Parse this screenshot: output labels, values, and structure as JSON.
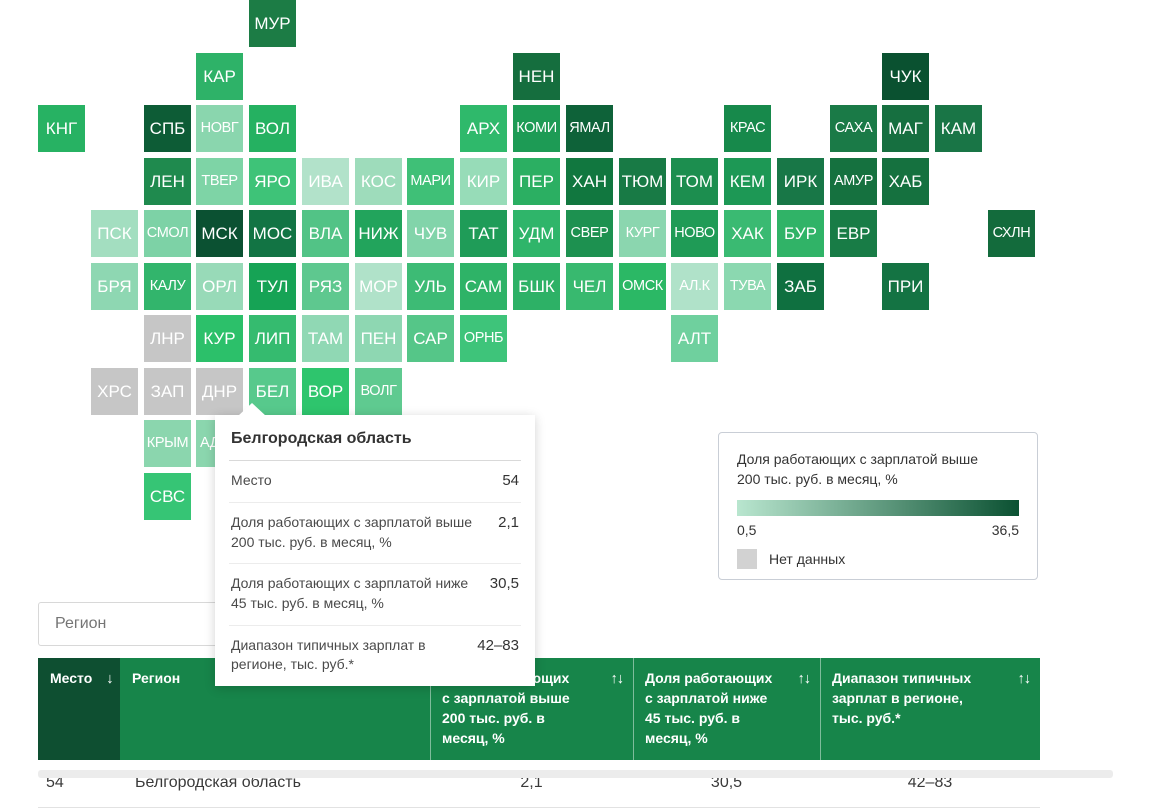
{
  "map": {
    "tiles": [
      {
        "label": "МУР",
        "row": 0,
        "col": 4,
        "color": "#1c7c45"
      },
      {
        "label": "КАР",
        "row": 1,
        "col": 3,
        "color": "#2eb268"
      },
      {
        "label": "НЕН",
        "row": 1,
        "col": 9,
        "color": "#156e3e"
      },
      {
        "label": "ЧУК",
        "row": 1,
        "col": 16,
        "color": "#0a5130"
      },
      {
        "label": "КНГ",
        "row": 2,
        "col": 0,
        "color": "#27b263"
      },
      {
        "label": "СПБ",
        "row": 2,
        "col": 2,
        "color": "#0d5c36"
      },
      {
        "label": "НОВГ",
        "row": 2,
        "col": 3,
        "color": "#8ad6ae"
      },
      {
        "label": "ВОЛ",
        "row": 2,
        "col": 4,
        "color": "#25b161"
      },
      {
        "label": "АРХ",
        "row": 2,
        "col": 8,
        "color": "#2fb96b"
      },
      {
        "label": "КОМИ",
        "row": 2,
        "col": 9,
        "color": "#1d9b55"
      },
      {
        "label": "ЯМАЛ",
        "row": 2,
        "col": 10,
        "color": "#0e6239"
      },
      {
        "label": "КРАС",
        "row": 2,
        "col": 13,
        "color": "#17894b"
      },
      {
        "label": "САХА",
        "row": 2,
        "col": 15,
        "color": "#1a7a47"
      },
      {
        "label": "МАГ",
        "row": 2,
        "col": 16,
        "color": "#166f40"
      },
      {
        "label": "КАМ",
        "row": 2,
        "col": 17,
        "color": "#197546"
      },
      {
        "label": "ЛЕН",
        "row": 3,
        "col": 2,
        "color": "#1f8a4e"
      },
      {
        "label": "ТВЕР",
        "row": 3,
        "col": 3,
        "color": "#7ed4a6"
      },
      {
        "label": "ЯРО",
        "row": 3,
        "col": 4,
        "color": "#3ec378"
      },
      {
        "label": "ИВА",
        "row": 3,
        "col": 5,
        "color": "#b2e2ca"
      },
      {
        "label": "КОС",
        "row": 3,
        "col": 6,
        "color": "#9edcbb"
      },
      {
        "label": "МАРИ",
        "row": 3,
        "col": 7,
        "color": "#3fc077"
      },
      {
        "label": "КИР",
        "row": 3,
        "col": 8,
        "color": "#97dcb8"
      },
      {
        "label": "ПЕР",
        "row": 3,
        "col": 9,
        "color": "#2baf62"
      },
      {
        "label": "ХАН",
        "row": 3,
        "col": 10,
        "color": "#11773f"
      },
      {
        "label": "ТЮМ",
        "row": 3,
        "col": 11,
        "color": "#187a45"
      },
      {
        "label": "ТОМ",
        "row": 3,
        "col": 12,
        "color": "#1c8e4f"
      },
      {
        "label": "КЕМ",
        "row": 3,
        "col": 13,
        "color": "#1d9855"
      },
      {
        "label": "ИРК",
        "row": 3,
        "col": 14,
        "color": "#187747"
      },
      {
        "label": "АМУР",
        "row": 3,
        "col": 15,
        "color": "#15713f"
      },
      {
        "label": "ХАБ",
        "row": 3,
        "col": 16,
        "color": "#15713f"
      },
      {
        "label": "ПСК",
        "row": 4,
        "col": 1,
        "color": "#a3dec0"
      },
      {
        "label": "СМОЛ",
        "row": 4,
        "col": 2,
        "color": "#7dd2a6"
      },
      {
        "label": "МСК",
        "row": 4,
        "col": 3,
        "color": "#0b5132"
      },
      {
        "label": "МОС",
        "row": 4,
        "col": 4,
        "color": "#127444"
      },
      {
        "label": "ВЛА",
        "row": 4,
        "col": 5,
        "color": "#52c386"
      },
      {
        "label": "НИЖ",
        "row": 4,
        "col": 6,
        "color": "#22a45c"
      },
      {
        "label": "ЧУВ",
        "row": 4,
        "col": 7,
        "color": "#82d4aa"
      },
      {
        "label": "ТАТ",
        "row": 4,
        "col": 8,
        "color": "#1f9c58"
      },
      {
        "label": "УДМ",
        "row": 4,
        "col": 9,
        "color": "#2fb56a"
      },
      {
        "label": "СВЕР",
        "row": 4,
        "col": 10,
        "color": "#1d9150"
      },
      {
        "label": "КУРГ",
        "row": 4,
        "col": 11,
        "color": "#8bd6af"
      },
      {
        "label": "НОВО",
        "row": 4,
        "col": 12,
        "color": "#1f9b56"
      },
      {
        "label": "ХАК",
        "row": 4,
        "col": 13,
        "color": "#3aba72"
      },
      {
        "label": "БУР",
        "row": 4,
        "col": 14,
        "color": "#30b367"
      },
      {
        "label": "ЕВР",
        "row": 4,
        "col": 15,
        "color": "#187c46"
      },
      {
        "label": "СХЛН",
        "row": 4,
        "col": 18,
        "color": "#136b3c"
      },
      {
        "label": "БРЯ",
        "row": 5,
        "col": 1,
        "color": "#8ed7b2"
      },
      {
        "label": "КАЛУ",
        "row": 5,
        "col": 2,
        "color": "#32b56c"
      },
      {
        "label": "ОРЛ",
        "row": 5,
        "col": 3,
        "color": "#98dab8"
      },
      {
        "label": "ТУЛ",
        "row": 5,
        "col": 4,
        "color": "#16a355"
      },
      {
        "label": "РЯЗ",
        "row": 5,
        "col": 5,
        "color": "#5ec88f"
      },
      {
        "label": "МОР",
        "row": 5,
        "col": 6,
        "color": "#b0e2c9"
      },
      {
        "label": "УЛЬ",
        "row": 5,
        "col": 7,
        "color": "#3dbb75"
      },
      {
        "label": "САМ",
        "row": 5,
        "col": 8,
        "color": "#2eb367"
      },
      {
        "label": "БШК",
        "row": 5,
        "col": 9,
        "color": "#2db166"
      },
      {
        "label": "ЧЕЛ",
        "row": 5,
        "col": 10,
        "color": "#38b96f"
      },
      {
        "label": "ОМСК",
        "row": 5,
        "col": 11,
        "color": "#2bb865"
      },
      {
        "label": "АЛ.К",
        "row": 5,
        "col": 12,
        "color": "#b0e2c9"
      },
      {
        "label": "ТУВА",
        "row": 5,
        "col": 13,
        "color": "#8bd8b0"
      },
      {
        "label": "ЗАБ",
        "row": 5,
        "col": 14,
        "color": "#0f7040"
      },
      {
        "label": "ПРИ",
        "row": 5,
        "col": 16,
        "color": "#147343"
      },
      {
        "label": "ЛНР",
        "row": 6,
        "col": 2,
        "color": "#c6c6c6",
        "no_data": true
      },
      {
        "label": "КУР",
        "row": 6,
        "col": 3,
        "color": "#2cc06a"
      },
      {
        "label": "ЛИП",
        "row": 6,
        "col": 4,
        "color": "#35bb6f"
      },
      {
        "label": "ТАМ",
        "row": 6,
        "col": 5,
        "color": "#90d8b4"
      },
      {
        "label": "ПЕН",
        "row": 6,
        "col": 6,
        "color": "#8ed7b2"
      },
      {
        "label": "САР",
        "row": 6,
        "col": 7,
        "color": "#55c688"
      },
      {
        "label": "ОРНБ",
        "row": 6,
        "col": 8,
        "color": "#3ec47a"
      },
      {
        "label": "АЛТ",
        "row": 6,
        "col": 12,
        "color": "#6fd09e"
      },
      {
        "label": "ХРС",
        "row": 7,
        "col": 1,
        "color": "#c6c6c6",
        "no_data": true
      },
      {
        "label": "ЗАП",
        "row": 7,
        "col": 2,
        "color": "#c6c6c6",
        "no_data": true
      },
      {
        "label": "ДНР",
        "row": 7,
        "col": 3,
        "color": "#c6c6c6",
        "no_data": true
      },
      {
        "label": "БЕЛ",
        "row": 7,
        "col": 4,
        "color": "#57c98c",
        "selected": true
      },
      {
        "label": "ВОР",
        "row": 7,
        "col": 5,
        "color": "#2ec56d"
      },
      {
        "label": "ВОЛГ",
        "row": 7,
        "col": 6,
        "color": "#5fca90"
      },
      {
        "label": "КРЫМ",
        "row": 8,
        "col": 2,
        "color": "#8bd6ae"
      },
      {
        "label": "АДЫГ",
        "row": 8,
        "col": 3,
        "color": "#8bd6ae"
      },
      {
        "label": "СВС",
        "row": 9,
        "col": 2,
        "color": "#36c575"
      }
    ]
  },
  "tooltip": {
    "title": "Белгородская область",
    "rows": [
      {
        "label": "Место",
        "value": "54"
      },
      {
        "label": "Доля работающих с зарплатой выше 200 тыс. руб. в месяц, %",
        "value": "2,1"
      },
      {
        "label": "Доля работающих с зарплатой ниже 45 тыс. руб. в месяц, %",
        "value": "30,5"
      },
      {
        "label": "Диапазон типичных зарплат в регионе, тыс. руб.*",
        "value": "42–83"
      }
    ]
  },
  "legend": {
    "title_line1": "Доля работающих с зарплатой выше",
    "title_line2": "200 тыс. руб. в месяц, %",
    "min": "0,5",
    "max": "36,5",
    "no_data_label": "Нет данных",
    "gradient_from": "#b9e6cf",
    "gradient_to": "#0b5132",
    "no_data_color": "#d2d2d2"
  },
  "filter": {
    "placeholder": "Регион"
  },
  "table": {
    "header_bg": "#17854a",
    "header_first_bg": "#0e4f31",
    "columns": [
      {
        "lines": [
          "Место"
        ],
        "sort": "down"
      },
      {
        "lines": [
          "Регион"
        ],
        "sort": "both"
      },
      {
        "lines": [
          "Доля работающих",
          "с зарплатой выше",
          "200 тыс. руб. в месяц, %"
        ],
        "sort": "both"
      },
      {
        "lines": [
          "Доля работающих",
          "с зарплатой ниже",
          "45 тыс. руб. в месяц, %"
        ],
        "sort": "both"
      },
      {
        "lines": [
          "Диапазон типичных",
          "зарплат в регионе,",
          "тыс. руб.*"
        ],
        "sort": "both"
      }
    ],
    "sort_down_icon": "↓",
    "sort_both_icon": "↑↓",
    "rows": [
      [
        "54",
        "Белгородская область",
        "2,1",
        "30,5",
        "42–83"
      ]
    ]
  },
  "chart_data": {
    "type": "heatmap",
    "subtype": "tile-grid-cartogram",
    "metric": "Доля работающих с зарплатой выше 200 тыс. руб. в месяц, %",
    "scale": {
      "min": 0.5,
      "max": 36.5,
      "no_data": "Нет данных"
    },
    "highlighted_region": {
      "name": "Белгородская область",
      "place": 54,
      "share_above_200k_pct": 2.1,
      "share_below_45k_pct": 30.5,
      "typical_salary_range_thousand_rub": "42–83"
    }
  }
}
